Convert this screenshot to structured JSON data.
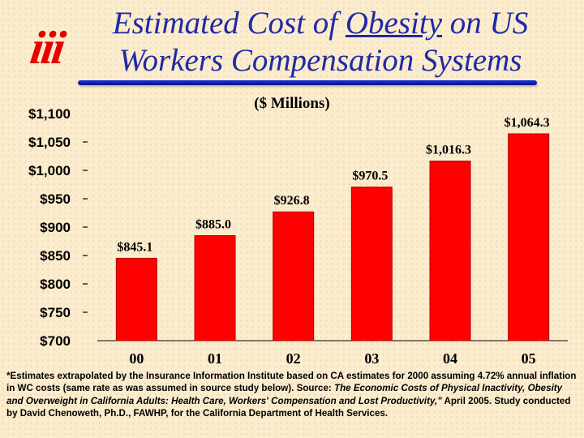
{
  "logo_text": "iii",
  "title": {
    "line1_before": "Estimated Cost of ",
    "line1_underlined": "Obesity",
    "line1_after": " on US",
    "line2": "Workers Compensation Systems"
  },
  "chart_data": {
    "type": "bar",
    "title": "",
    "subtitle": "($ Millions)",
    "xlabel": "",
    "ylabel": "",
    "categories": [
      "00",
      "01",
      "02",
      "03",
      "04",
      "05"
    ],
    "values": [
      845.1,
      885.0,
      926.8,
      970.5,
      1016.3,
      1064.3
    ],
    "data_labels": [
      "$845.1",
      "$885.0",
      "$926.8",
      "$970.5",
      "$1,016.3",
      "$1,064.3"
    ],
    "ylim": [
      700,
      1100
    ],
    "y_ticks": [
      700,
      750,
      800,
      850,
      900,
      950,
      1000,
      1050,
      1100
    ],
    "y_tick_labels": [
      "$700",
      "$750",
      "$800",
      "$850",
      "$900",
      "$950",
      "$1,000",
      "$1,050",
      "$1,100"
    ],
    "grid": false,
    "legend": "none",
    "colors": {
      "bar": "#ff0000",
      "bar_stroke": "#b40000"
    }
  },
  "footnote": {
    "part1": "*Estimates extrapolated by the Insurance Information Institute based on CA estimates for 2000 assuming 4.72% annual inflation in WC costs (same rate as was assumed in source study below). Source: ",
    "source_title": "The Economic Costs of Physical Inactivity, Obesity and Overweight in California Adults: Health Care, Workers' Compensation and Lost Productivity,\"",
    "part2": " April 2005.  Study conducted by David Chenoweth, Ph.D., FAWHP, for the California Department of Health Services."
  }
}
